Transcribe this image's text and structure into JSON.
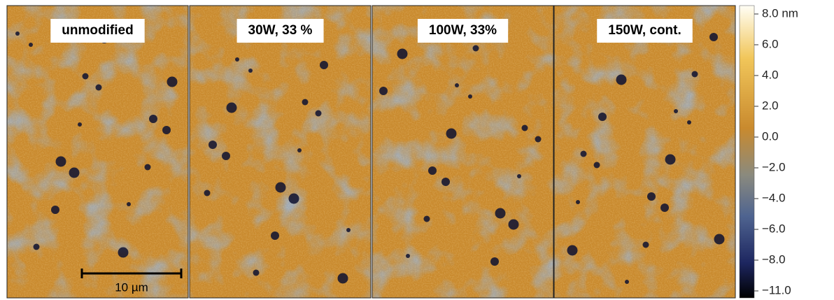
{
  "panels": [
    {
      "label": "unmodified"
    },
    {
      "label": "30W, 33 %"
    },
    {
      "label": "100W, 33%"
    },
    {
      "label": "150W, cont."
    }
  ],
  "scale_bar": {
    "label": "10 µm"
  },
  "colorbar": {
    "ticks": [
      {
        "value": 8,
        "label": "8.0 nm"
      },
      {
        "value": 6,
        "label": "6.0"
      },
      {
        "value": 4,
        "label": "4.0"
      },
      {
        "value": 2,
        "label": "2.0"
      },
      {
        "value": 0,
        "label": "0.0"
      },
      {
        "value": -2,
        "label": "−2.0"
      },
      {
        "value": -4,
        "label": "−4.0"
      },
      {
        "value": -6,
        "label": "−6.0"
      },
      {
        "value": -8,
        "label": "−8.0"
      },
      {
        "value": -11,
        "label": "−11.0"
      }
    ]
  }
}
